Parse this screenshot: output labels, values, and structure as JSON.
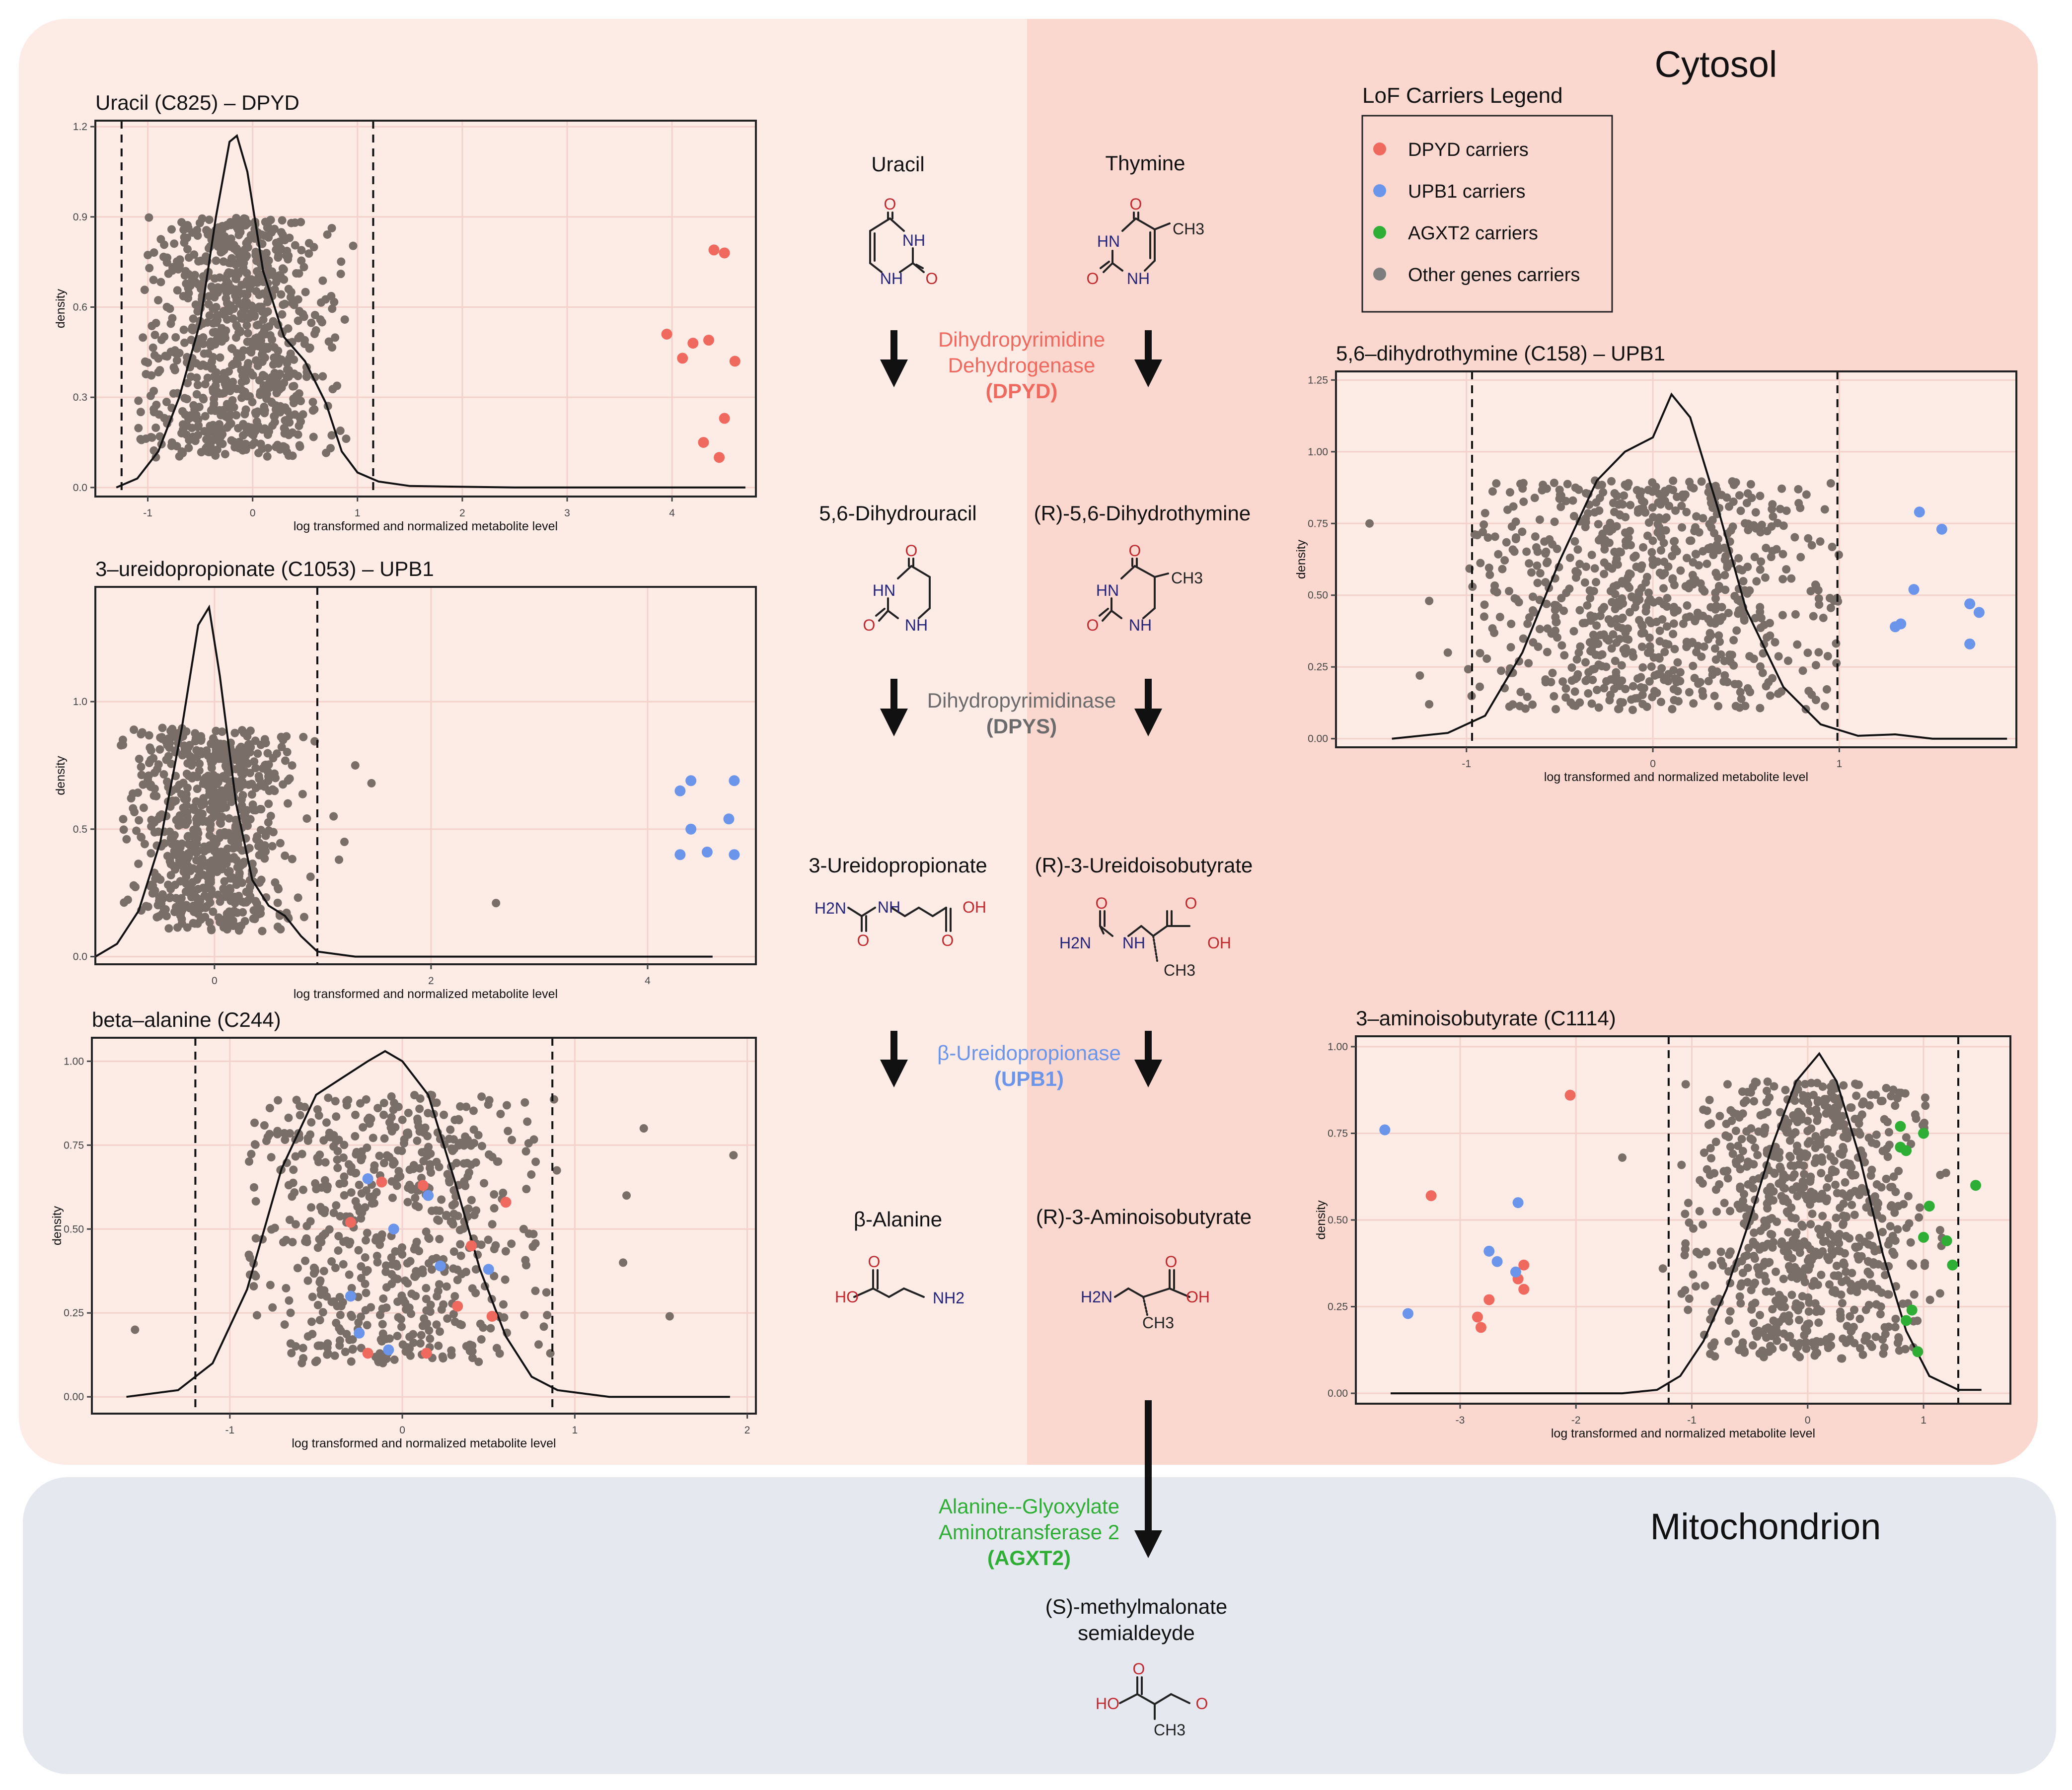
{
  "regions": {
    "cytosol": "Cytosol",
    "mitochondrion": "Mitochondrion"
  },
  "legend": {
    "title": "LoF Carriers Legend",
    "items": [
      {
        "label": "DPYD carriers",
        "color": "#f0695f"
      },
      {
        "label": "UPB1 carriers",
        "color": "#6b95ea"
      },
      {
        "label": "AGXT2 carriers",
        "color": "#2fae35"
      },
      {
        "label": "Other genes carriers",
        "color": "#7d7d7d"
      }
    ]
  },
  "enzymes": [
    {
      "lines": [
        "Dihydropyrimidine",
        "Dehydrogenase"
      ],
      "abbr": "(DPYD)",
      "color": "#f0695f"
    },
    {
      "lines": [
        "Dihydropyrimidinase"
      ],
      "abbr": "(DPYS)",
      "color": "#6b6b6b"
    },
    {
      "lines": [
        "β-Ureidopropionase"
      ],
      "abbr": "(UPB1)",
      "color": "#6b95ea"
    },
    {
      "lines": [
        "Alanine--Glyoxylate",
        "Aminotransferase 2"
      ],
      "abbr": "(AGXT2)",
      "color": "#2fae35"
    }
  ],
  "compounds": {
    "uracil": "Uracil",
    "thymine": "Thymine",
    "dihydrouracil": "5,6-Dihydrouracil",
    "dihydrothymine": "(R)-5,6-Dihydrothymine",
    "ureidopropionate": "3-Ureidopropionate",
    "ureidoisobutyrate": "(R)-3-Ureidoisobutyrate",
    "alanine": "β-Alanine",
    "aminoisobutyrate": "(R)-3-Aminoisobutyrate",
    "msa_line1": "(S)-methylmalonate",
    "msa_line2": "semialdeyde"
  },
  "chem_labels": {
    "o": "O",
    "nh": "NH",
    "hn": "HN",
    "ch3": "CH3",
    "h2n": "H2N",
    "oh": "OH",
    "ho": "HO",
    "nh2": "NH2"
  },
  "chart_data": [
    {
      "id": "uracil",
      "type": "scatter",
      "title": "Uracil (C825) – DPYD",
      "xlabel": "log transformed and normalized metabolite level",
      "ylabel": "density",
      "xlim": [
        -1.5,
        4.8
      ],
      "ylim": [
        -0.03,
        1.22
      ],
      "xticks": [
        -1,
        0,
        1,
        2,
        3,
        4
      ],
      "yticks": [
        0.0,
        0.3,
        0.6,
        0.9,
        1.2
      ],
      "ytick_labels": [
        "0.0",
        "0.3",
        "0.6",
        "0.9",
        "1.2"
      ],
      "vlines": [
        -1.25,
        1.15
      ],
      "cloud": {
        "xmin": -1.1,
        "xmax": 1.2,
        "ymin": 0.1,
        "ymax": 0.9,
        "center": -0.15,
        "sd": 0.42,
        "n": 820
      },
      "density": [
        [
          -1.3,
          0
        ],
        [
          -1.1,
          0.03
        ],
        [
          -0.9,
          0.12
        ],
        [
          -0.7,
          0.3
        ],
        [
          -0.5,
          0.55
        ],
        [
          -0.35,
          0.9
        ],
        [
          -0.22,
          1.15
        ],
        [
          -0.15,
          1.17
        ],
        [
          -0.05,
          1.05
        ],
        [
          0.1,
          0.72
        ],
        [
          0.3,
          0.5
        ],
        [
          0.5,
          0.42
        ],
        [
          0.7,
          0.28
        ],
        [
          0.85,
          0.12
        ],
        [
          1.0,
          0.05
        ],
        [
          1.2,
          0.02
        ],
        [
          1.5,
          0.005
        ],
        [
          2.5,
          0
        ],
        [
          4.7,
          0
        ]
      ],
      "carriers": [
        {
          "group": "DPYD",
          "points": [
            [
              4.4,
              0.79
            ],
            [
              4.5,
              0.78
            ],
            [
              3.95,
              0.51
            ],
            [
              4.1,
              0.43
            ],
            [
              4.2,
              0.48
            ],
            [
              4.35,
              0.49
            ],
            [
              4.6,
              0.42
            ],
            [
              4.5,
              0.23
            ],
            [
              4.3,
              0.15
            ],
            [
              4.45,
              0.1
            ]
          ]
        }
      ]
    },
    {
      "id": "ureidopropionate",
      "type": "scatter",
      "title": "3–ureidopropionate (C1053) – UPB1",
      "xlabel": "log transformed and normalized metabolite level",
      "ylabel": "density",
      "xlim": [
        -1.1,
        5.0
      ],
      "ylim": [
        -0.03,
        1.45
      ],
      "xticks": [
        0,
        2,
        4
      ],
      "yticks": [
        0.0,
        0.5,
        1.0
      ],
      "ytick_labels": [
        "0.0",
        "0.5",
        "1.0"
      ],
      "vlines": [
        -1.1,
        0.95
      ],
      "cloud": {
        "xmin": -0.9,
        "xmax": 1.0,
        "ymin": 0.1,
        "ymax": 0.9,
        "center": -0.05,
        "sd": 0.35,
        "n": 720
      },
      "density": [
        [
          -1.1,
          0
        ],
        [
          -0.9,
          0.05
        ],
        [
          -0.7,
          0.18
        ],
        [
          -0.5,
          0.45
        ],
        [
          -0.3,
          0.9
        ],
        [
          -0.15,
          1.3
        ],
        [
          -0.05,
          1.37
        ],
        [
          0.05,
          1.1
        ],
        [
          0.2,
          0.6
        ],
        [
          0.35,
          0.3
        ],
        [
          0.5,
          0.2
        ],
        [
          0.65,
          0.16
        ],
        [
          0.8,
          0.08
        ],
        [
          0.95,
          0.02
        ],
        [
          1.3,
          0
        ],
        [
          4.6,
          0
        ]
      ],
      "extra_gray": [
        [
          2.6,
          0.21
        ],
        [
          1.3,
          0.75
        ],
        [
          1.45,
          0.68
        ],
        [
          1.1,
          0.55
        ],
        [
          1.2,
          0.45
        ],
        [
          1.15,
          0.38
        ]
      ],
      "carriers": [
        {
          "group": "UPB1",
          "points": [
            [
              4.3,
              0.65
            ],
            [
              4.4,
              0.69
            ],
            [
              4.8,
              0.69
            ],
            [
              4.75,
              0.54
            ],
            [
              4.4,
              0.5
            ],
            [
              4.3,
              0.4
            ],
            [
              4.55,
              0.41
            ],
            [
              4.8,
              0.4
            ]
          ]
        }
      ]
    },
    {
      "id": "betaalanine",
      "type": "scatter",
      "title": "beta–alanine (C244)",
      "xlabel": "log transformed and normalized metabolite level",
      "ylabel": "density",
      "xlim": [
        -1.8,
        2.05
      ],
      "ylim": [
        -0.05,
        1.07
      ],
      "xticks": [
        -1,
        0,
        1,
        2
      ],
      "yticks": [
        0.0,
        0.25,
        0.5,
        0.75,
        1.0
      ],
      "ytick_labels": [
        "0.00",
        "0.25",
        "0.50",
        "0.75",
        "1.00"
      ],
      "vlines": [
        -1.2,
        0.87
      ],
      "cloud": {
        "xmin": -0.9,
        "xmax": 0.9,
        "ymin": 0.1,
        "ymax": 0.9,
        "center": -0.05,
        "sd": 0.42,
        "n": 620
      },
      "density": [
        [
          -1.6,
          0
        ],
        [
          -1.3,
          0.02
        ],
        [
          -1.1,
          0.1
        ],
        [
          -0.9,
          0.32
        ],
        [
          -0.7,
          0.68
        ],
        [
          -0.5,
          0.9
        ],
        [
          -0.35,
          0.95
        ],
        [
          -0.2,
          1.0
        ],
        [
          -0.1,
          1.03
        ],
        [
          0.0,
          1.0
        ],
        [
          0.15,
          0.9
        ],
        [
          0.3,
          0.65
        ],
        [
          0.45,
          0.38
        ],
        [
          0.6,
          0.18
        ],
        [
          0.75,
          0.06
        ],
        [
          0.9,
          0.02
        ],
        [
          1.2,
          0
        ],
        [
          1.9,
          0
        ]
      ],
      "extra_gray": [
        [
          -1.55,
          0.2
        ],
        [
          1.92,
          0.72
        ],
        [
          1.55,
          0.24
        ],
        [
          1.4,
          0.8
        ],
        [
          1.3,
          0.6
        ],
        [
          1.28,
          0.4
        ]
      ],
      "carriers": [
        {
          "group": "DPYD",
          "points": [
            [
              -0.3,
              0.52
            ],
            [
              -0.12,
              0.64
            ],
            [
              0.12,
              0.63
            ],
            [
              0.6,
              0.58
            ],
            [
              0.4,
              0.45
            ],
            [
              0.32,
              0.27
            ],
            [
              0.52,
              0.24
            ],
            [
              -0.2,
              0.13
            ],
            [
              0.14,
              0.13
            ]
          ]
        },
        {
          "group": "UPB1",
          "points": [
            [
              -0.2,
              0.65
            ],
            [
              0.15,
              0.6
            ],
            [
              -0.05,
              0.5
            ],
            [
              0.22,
              0.39
            ],
            [
              0.5,
              0.38
            ],
            [
              -0.3,
              0.3
            ],
            [
              -0.25,
              0.19
            ],
            [
              -0.08,
              0.14
            ]
          ]
        }
      ]
    },
    {
      "id": "dihydrothymine",
      "type": "scatter",
      "title": "5,6–dihydrothymine (C158) – UPB1",
      "xlabel": "log transformed and normalized metabolite level",
      "ylabel": "density",
      "xlim": [
        -1.7,
        1.95
      ],
      "ylim": [
        -0.03,
        1.28
      ],
      "xticks": [
        -1,
        0,
        1
      ],
      "yticks": [
        0.0,
        0.25,
        0.5,
        0.75,
        1.0,
        1.25
      ],
      "ytick_labels": [
        "0.00",
        "0.25",
        "0.50",
        "0.75",
        "1.00",
        "1.25"
      ],
      "vlines": [
        -0.97,
        0.99
      ],
      "cloud": {
        "xmin": -1.0,
        "xmax": 1.0,
        "ymin": 0.1,
        "ymax": 0.9,
        "center": 0.0,
        "sd": 0.45,
        "n": 780
      },
      "density": [
        [
          -1.4,
          0
        ],
        [
          -1.1,
          0.02
        ],
        [
          -0.9,
          0.08
        ],
        [
          -0.7,
          0.3
        ],
        [
          -0.5,
          0.62
        ],
        [
          -0.3,
          0.9
        ],
        [
          -0.15,
          1.0
        ],
        [
          0.0,
          1.05
        ],
        [
          0.1,
          1.2
        ],
        [
          0.2,
          1.12
        ],
        [
          0.35,
          0.8
        ],
        [
          0.5,
          0.45
        ],
        [
          0.7,
          0.18
        ],
        [
          0.9,
          0.05
        ],
        [
          1.1,
          0.01
        ],
        [
          1.3,
          0.015
        ],
        [
          1.5,
          0
        ],
        [
          1.9,
          0
        ]
      ],
      "extra_gray": [
        [
          -1.52,
          0.75
        ],
        [
          -1.2,
          0.48
        ],
        [
          -1.25,
          0.22
        ],
        [
          -1.2,
          0.12
        ],
        [
          -1.1,
          0.3
        ]
      ],
      "carriers": [
        {
          "group": "UPB1",
          "points": [
            [
              1.43,
              0.79
            ],
            [
              1.55,
              0.73
            ],
            [
              1.4,
              0.52
            ],
            [
              1.3,
              0.39
            ],
            [
              1.33,
              0.4
            ],
            [
              1.7,
              0.47
            ],
            [
              1.75,
              0.44
            ],
            [
              1.7,
              0.33
            ]
          ]
        }
      ]
    },
    {
      "id": "aminoisobutyrate",
      "type": "scatter",
      "title": "3–aminoisobutyrate (C1114)",
      "xlabel": "log transformed and normalized metabolite level",
      "ylabel": "density",
      "xlim": [
        -3.9,
        1.75
      ],
      "ylim": [
        -0.03,
        1.03
      ],
      "xticks": [
        -3,
        -2,
        -1,
        0,
        1
      ],
      "yticks": [
        0.0,
        0.25,
        0.5,
        0.75,
        1.0
      ],
      "ytick_labels": [
        "0.00",
        "0.25",
        "0.50",
        "0.75",
        "1.00"
      ],
      "vlines": [
        -1.2,
        1.3
      ],
      "cloud": {
        "xmin": -1.1,
        "xmax": 1.2,
        "ymin": 0.1,
        "ymax": 0.9,
        "center": 0.0,
        "sd": 0.5,
        "n": 800
      },
      "density": [
        [
          -3.6,
          0
        ],
        [
          -1.6,
          0
        ],
        [
          -1.3,
          0.01
        ],
        [
          -1.1,
          0.05
        ],
        [
          -0.9,
          0.15
        ],
        [
          -0.7,
          0.3
        ],
        [
          -0.5,
          0.5
        ],
        [
          -0.3,
          0.72
        ],
        [
          -0.1,
          0.9
        ],
        [
          0.1,
          0.98
        ],
        [
          0.25,
          0.9
        ],
        [
          0.45,
          0.68
        ],
        [
          0.65,
          0.4
        ],
        [
          0.85,
          0.18
        ],
        [
          1.05,
          0.05
        ],
        [
          1.3,
          0.01
        ],
        [
          1.5,
          0.01
        ]
      ],
      "extra_gray": [
        [
          -1.6,
          0.68
        ],
        [
          -1.25,
          0.36
        ]
      ],
      "carriers": [
        {
          "group": "DPYD",
          "points": [
            [
              -2.05,
              0.86
            ],
            [
              -3.25,
              0.57
            ],
            [
              -2.45,
              0.37
            ],
            [
              -2.5,
              0.33
            ],
            [
              -2.45,
              0.3
            ],
            [
              -2.75,
              0.27
            ],
            [
              -2.85,
              0.22
            ],
            [
              -2.82,
              0.19
            ]
          ]
        },
        {
          "group": "UPB1",
          "points": [
            [
              -3.65,
              0.76
            ],
            [
              -3.45,
              0.23
            ],
            [
              -2.5,
              0.55
            ],
            [
              -2.75,
              0.41
            ],
            [
              -2.68,
              0.38
            ],
            [
              -2.52,
              0.35
            ]
          ]
        },
        {
          "group": "AGXT2",
          "points": [
            [
              0.8,
              0.77
            ],
            [
              1.0,
              0.75
            ],
            [
              0.8,
              0.71
            ],
            [
              0.85,
              0.7
            ],
            [
              1.45,
              0.6
            ],
            [
              1.05,
              0.54
            ],
            [
              1.0,
              0.45
            ],
            [
              1.2,
              0.44
            ],
            [
              1.25,
              0.37
            ],
            [
              0.9,
              0.24
            ],
            [
              0.85,
              0.21
            ],
            [
              0.95,
              0.12
            ]
          ]
        }
      ]
    }
  ]
}
